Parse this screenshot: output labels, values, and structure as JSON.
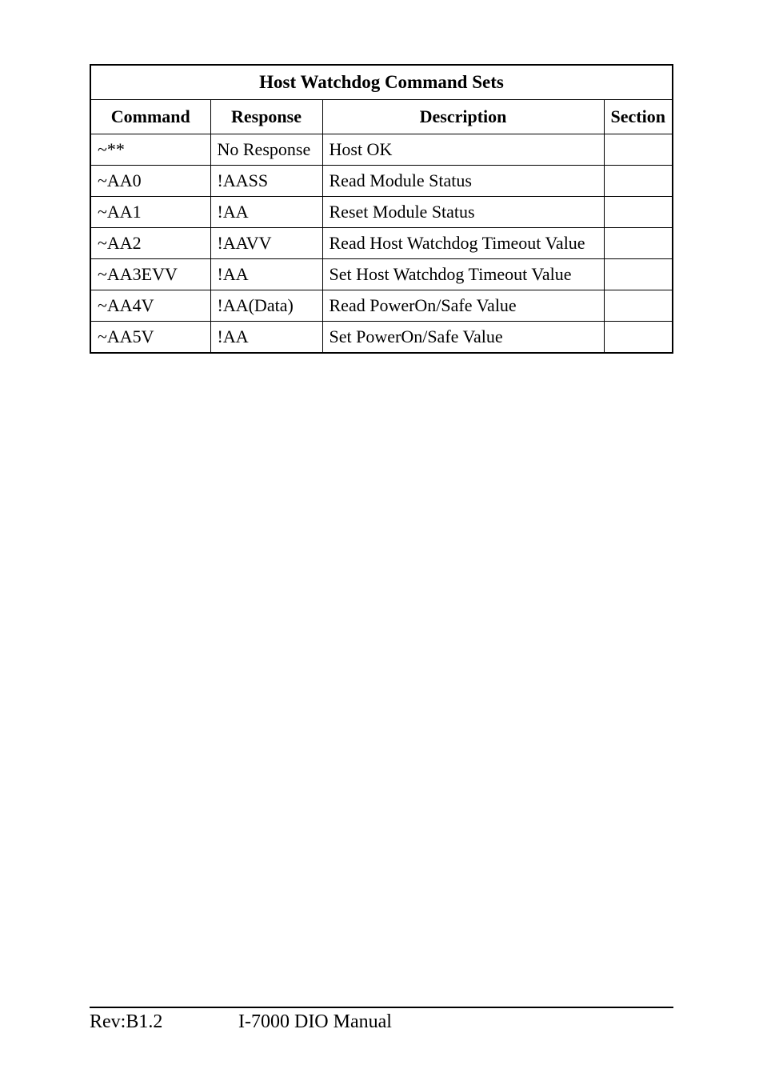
{
  "table": {
    "title": "Host Watchdog Command Sets",
    "headers": {
      "command": "Command",
      "response": "Response",
      "description": "Description",
      "section": "Section"
    },
    "rows": [
      {
        "command": "~**",
        "response": "No Response",
        "description": "Host OK",
        "section": ""
      },
      {
        "command": "~AA0",
        "response": "!AASS",
        "description": "Read Module Status",
        "section": ""
      },
      {
        "command": "~AA1",
        "response": "!AA",
        "description": "Reset Module Status",
        "section": ""
      },
      {
        "command": "~AA2",
        "response": "!AAVV",
        "description": "Read Host Watchdog Timeout Value",
        "section": ""
      },
      {
        "command": "~AA3EVV",
        "response": "!AA",
        "description": "Set Host Watchdog Timeout Value",
        "section": ""
      },
      {
        "command": "~AA4V",
        "response": "!AA(Data)",
        "description": "Read PowerOn/Safe Value",
        "section": ""
      },
      {
        "command": "~AA5V",
        "response": "!AA",
        "description": "Set PowerOn/Safe Value",
        "section": ""
      }
    ]
  },
  "footer": {
    "rev": "Rev:B1.2",
    "title": "I-7000 DIO Manual"
  },
  "colors": {
    "background": "#ffffff",
    "text": "#000000",
    "border": "#000000"
  },
  "typography": {
    "family": "Times New Roman",
    "title_fontsize": 23,
    "header_fontsize": 22,
    "cell_fontsize": 22,
    "footer_fontsize": 24
  }
}
